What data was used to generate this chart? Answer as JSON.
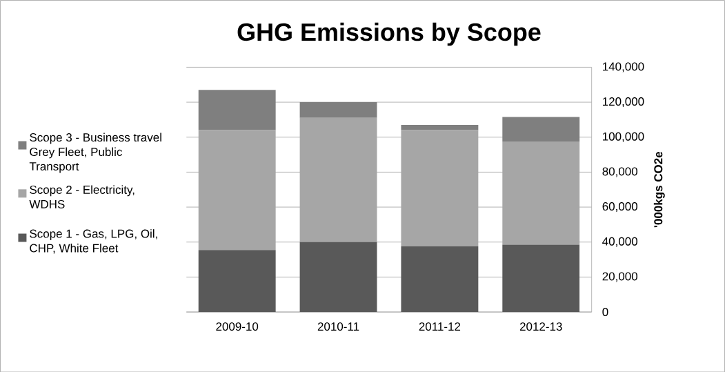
{
  "chart_data": {
    "type": "bar",
    "title": "GHG Emissions by Scope",
    "ylabel": "'000kgs CO2e",
    "categories": [
      "2009-10",
      "2010-11",
      "2011-12",
      "2012-13"
    ],
    "stacked": true,
    "series": [
      {
        "name": "Scope 1 - Gas, LPG, Oil, CHP, White Fleet",
        "color": "#595959",
        "values": [
          35500,
          40000,
          37500,
          38500
        ]
      },
      {
        "name": "Scope 2 - Electricity, WDHS",
        "color": "#a6a6a6",
        "values": [
          68500,
          71000,
          66500,
          59000
        ]
      },
      {
        "name": "Scope 3 - Business travel Grey Fleet, Public Transport",
        "color": "#7f7f7f",
        "values": [
          23000,
          9000,
          3000,
          14000
        ]
      }
    ],
    "ylim": [
      0,
      140000
    ],
    "yticks": [
      {
        "value": 0,
        "label": "0"
      },
      {
        "value": 20000,
        "label": "20,000"
      },
      {
        "value": 40000,
        "label": "40,000"
      },
      {
        "value": 60000,
        "label": "60,000"
      },
      {
        "value": 80000,
        "label": "80,000"
      },
      {
        "value": 100000,
        "label": "100,000"
      },
      {
        "value": 120000,
        "label": "120,000"
      },
      {
        "value": 140000,
        "label": "140,000"
      }
    ],
    "grid": "y",
    "legend": "left"
  }
}
